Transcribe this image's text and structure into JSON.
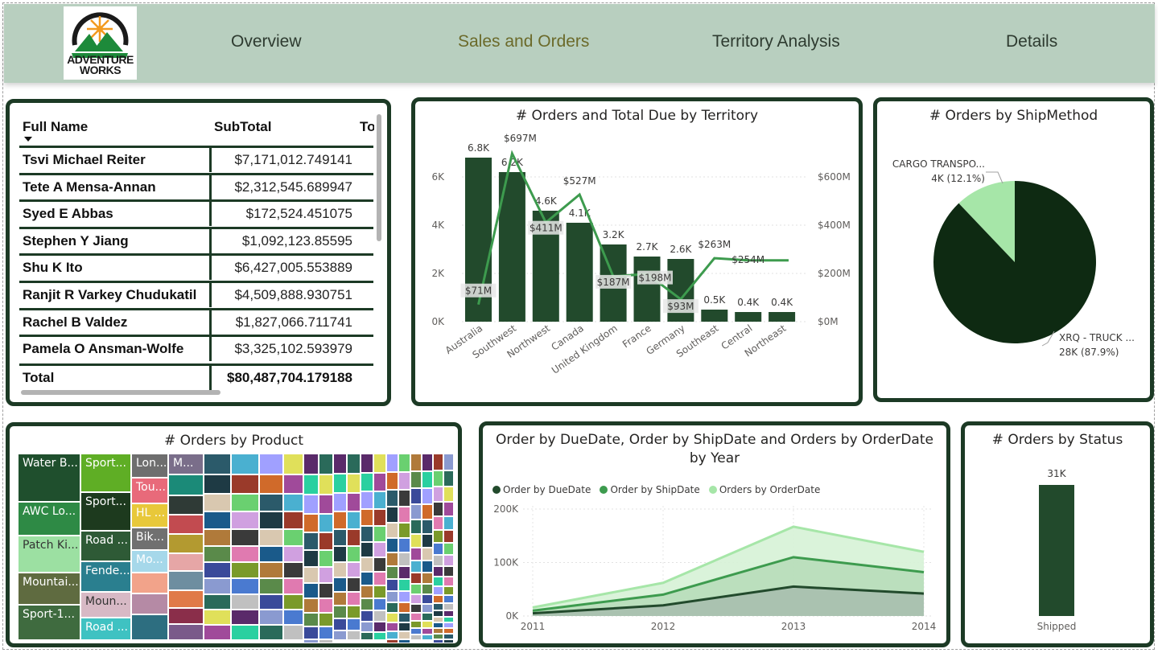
{
  "nav": {
    "logo_line1": "ADVENTURE",
    "logo_line2": "WORKS",
    "items": [
      "Overview",
      "Sales and Orders",
      "Territory Analysis",
      "Details"
    ],
    "active": "Sales and Orders"
  },
  "table": {
    "headers": [
      "Full Name",
      "SubTotal",
      "To"
    ],
    "rows": [
      {
        "name": "Tsvi Michael Reiter",
        "subtotal": "$7,171,012.749141"
      },
      {
        "name": "Tete A Mensa-Annan",
        "subtotal": "$2,312,545.689947"
      },
      {
        "name": "Syed E Abbas",
        "subtotal": "$172,524.451075"
      },
      {
        "name": "Stephen Y Jiang",
        "subtotal": "$1,092,123.85595"
      },
      {
        "name": "Shu K Ito",
        "subtotal": "$6,427,005.553889"
      },
      {
        "name": "Ranjit R Varkey Chudukatil",
        "subtotal": "$4,509,888.930751"
      },
      {
        "name": "Rachel B Valdez",
        "subtotal": "$1,827,066.711741"
      },
      {
        "name": "Pamela O Ansman-Wolfe",
        "subtotal": "$3,325,102.593979"
      }
    ],
    "total_label": "Total",
    "total_value": "$80,487,704.179188"
  },
  "territory": {
    "title": "# Orders and Total Due by Territory",
    "left_ticks": [
      "6K",
      "4K",
      "2K",
      "0K"
    ],
    "right_ticks": [
      "$600M",
      "$400M",
      "$200M",
      "$0M"
    ]
  },
  "shipmethod": {
    "title": "# Orders by ShipMethod",
    "cargo_label": "CARGO TRANSPO...",
    "cargo_value": "4K (12.1%)",
    "truck_label": "XRQ - TRUCK ...",
    "truck_value": "28K (87.9%)"
  },
  "product": {
    "title": "# Orders by Product",
    "labels": [
      "Water B...",
      "AWC Lo...",
      "Patch Ki...",
      "Mountai...",
      "Sport-1...",
      "Sport...",
      "Sport...",
      "Road ...",
      "Fende...",
      "Road ...",
      "Lon...",
      "Tou...",
      "HL ...",
      "Bik...",
      "Mo...",
      "Moun...",
      "M..."
    ]
  },
  "dates": {
    "title_line1": "Order by DueDate, Order by ShipDate and Orders by OrderDate",
    "title_line2": "by Year",
    "legend": [
      "Order by DueDate",
      "Order by ShipDate",
      "Orders by OrderDate"
    ],
    "y_ticks": [
      "200K",
      "100K",
      "0K"
    ]
  },
  "status": {
    "title": "# Orders by Status",
    "bar_label": "31K",
    "category": "Shipped"
  },
  "colors": {
    "dark_green": "#1c3a25",
    "bar_green": "#224a2c",
    "mid_green": "#3d9b4e",
    "light_green": "#a6e6a8",
    "nav_bg": "#b8cfbf"
  },
  "chart_data": [
    {
      "type": "bar",
      "title": "# Orders and Total Due by Territory",
      "categories": [
        "Australia",
        "Southwest",
        "Northwest",
        "Canada",
        "United Kingdom",
        "France",
        "Germany",
        "Southeast",
        "Central",
        "Northeast"
      ],
      "series": [
        {
          "name": "# Orders",
          "type": "bar",
          "values": [
            6800,
            6200,
            4600,
            4100,
            3200,
            2700,
            2600,
            500,
            400,
            400
          ],
          "labels": [
            "6.8K",
            "6.2K",
            "4.6K",
            "4.1K",
            "3.2K",
            "2.7K",
            "2.6K",
            "0.5K",
            "0.4K",
            "0.4K"
          ]
        },
        {
          "name": "Total Due",
          "type": "line",
          "values": [
            71,
            697,
            411,
            527,
            187,
            198,
            93,
            263,
            254,
            254
          ],
          "labels": [
            "$71M",
            "$697M",
            "$411M",
            "$527M",
            "$187M",
            "$198M",
            "$93M",
            "$263M",
            "$254M",
            ""
          ]
        }
      ],
      "ylim_left": [
        0,
        7000
      ],
      "ylim_right": [
        0,
        700
      ]
    },
    {
      "type": "pie",
      "title": "# Orders by ShipMethod",
      "categories": [
        "CARGO TRANSPO...",
        "XRQ - TRUCK ..."
      ],
      "values": [
        12.1,
        87.9
      ],
      "labels": [
        "4K (12.1%)",
        "28K (87.9%)"
      ]
    },
    {
      "type": "area",
      "title": "Order by DueDate, Order by ShipDate and Orders by OrderDate by Year",
      "x": [
        2011,
        2012,
        2013,
        2014
      ],
      "series": [
        {
          "name": "Order by DueDate",
          "values": [
            5000,
            20000,
            55000,
            42000
          ]
        },
        {
          "name": "Order by ShipDate",
          "values": [
            10000,
            40000,
            110000,
            82000
          ]
        },
        {
          "name": "Orders by OrderDate",
          "values": [
            16000,
            62000,
            167000,
            120000
          ]
        }
      ],
      "ylim": [
        0,
        200000
      ]
    },
    {
      "type": "bar",
      "title": "# Orders by Status",
      "categories": [
        "Shipped"
      ],
      "values": [
        31000
      ],
      "labels": [
        "31K"
      ]
    }
  ]
}
